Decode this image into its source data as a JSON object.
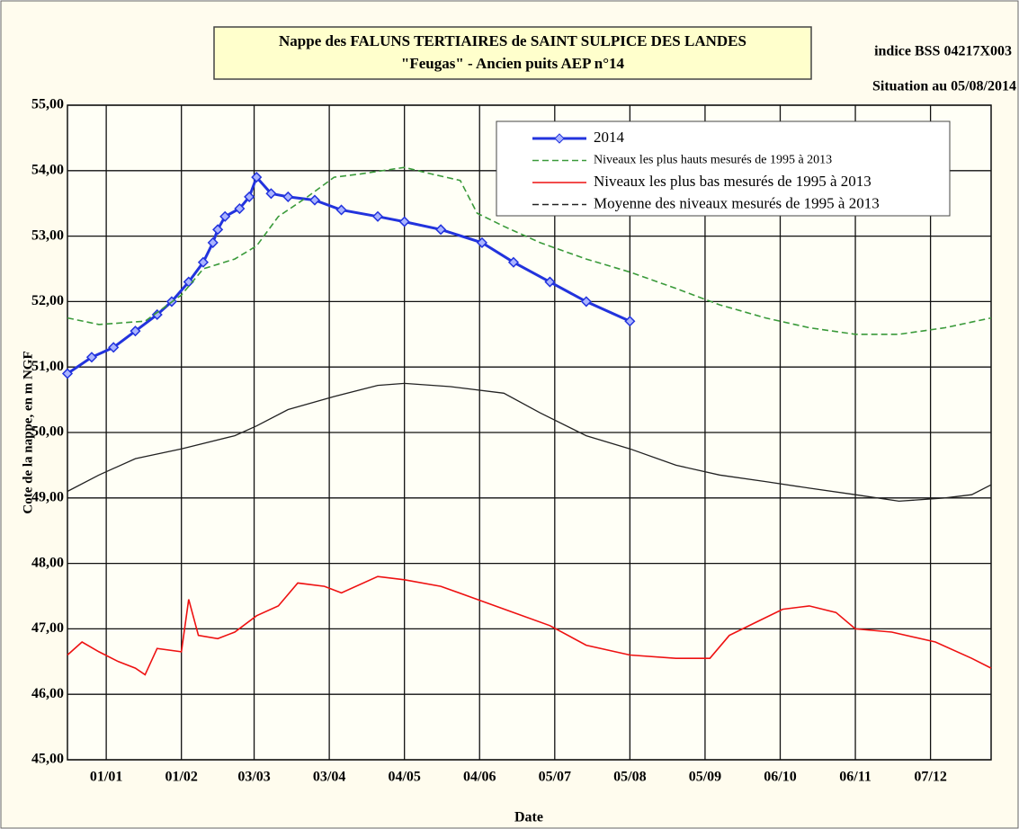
{
  "chart_data": {
    "type": "line",
    "title": "Nappe des FALUNS TERTIAIRES de SAINT SULPICE DES LANDES",
    "subtitle": "\"Feugas\" - Ancien puits AEP n°14",
    "annotations": [
      "indice BSS 04217X003",
      "Situation au 05/08/2014"
    ],
    "y_label": "Cote de la nappe, en m NGF",
    "x_label": "Date",
    "xlim": [
      -16,
      365
    ],
    "xticks": [
      {
        "value": 0,
        "label": "01/01"
      },
      {
        "value": 31,
        "label": "01/02"
      },
      {
        "value": 61,
        "label": "03/03"
      },
      {
        "value": 92,
        "label": "03/04"
      },
      {
        "value": 123,
        "label": "04/05"
      },
      {
        "value": 154,
        "label": "04/06"
      },
      {
        "value": 185,
        "label": "05/07"
      },
      {
        "value": 216,
        "label": "05/08"
      },
      {
        "value": 247,
        "label": "05/09"
      },
      {
        "value": 278,
        "label": "06/10"
      },
      {
        "value": 309,
        "label": "06/11"
      },
      {
        "value": 340,
        "label": "07/12"
      }
    ],
    "ylim": [
      45,
      55
    ],
    "yticks": [
      {
        "value": 45,
        "label": "45,00"
      },
      {
        "value": 46,
        "label": "46,00"
      },
      {
        "value": 47,
        "label": "47,00"
      },
      {
        "value": 48,
        "label": "48,00"
      },
      {
        "value": 49,
        "label": "49,00"
      },
      {
        "value": 50,
        "label": "50,00"
      },
      {
        "value": 51,
        "label": "51,00"
      },
      {
        "value": 52,
        "label": "52,00"
      },
      {
        "value": 53,
        "label": "53,00"
      },
      {
        "value": 54,
        "label": "54,00"
      },
      {
        "value": 55,
        "label": "55,00"
      }
    ],
    "grid": true,
    "legend": "top-right",
    "series": [
      {
        "name": "2014",
        "color": "#2233dd",
        "markers": true,
        "dashed": false,
        "x": [
          -16,
          -6,
          3,
          12,
          21,
          27,
          34,
          40,
          44,
          46,
          49,
          55,
          59,
          62,
          68,
          75,
          86,
          97,
          112,
          123,
          138,
          155,
          168,
          183,
          198,
          216
        ],
        "values": [
          50.9,
          51.15,
          51.3,
          51.55,
          51.8,
          52.0,
          52.3,
          52.6,
          52.9,
          53.1,
          53.3,
          53.42,
          53.6,
          53.9,
          53.65,
          53.6,
          53.55,
          53.4,
          53.3,
          53.22,
          53.1,
          52.9,
          52.6,
          52.3,
          52.0,
          51.7
        ]
      },
      {
        "name": "Niveaux les plus hauts mesurés de 1995 à 2013",
        "color": "#3a9a3a",
        "markers": false,
        "dashed": true,
        "x": [
          -16,
          -3,
          16,
          31,
          40,
          53,
          62,
          71,
          83,
          94,
          105,
          123,
          134,
          146,
          153,
          164,
          179,
          198,
          216,
          235,
          253,
          272,
          290,
          309,
          327,
          346,
          365
        ],
        "values": [
          51.75,
          51.65,
          51.7,
          52.1,
          52.5,
          52.65,
          52.85,
          53.3,
          53.6,
          53.9,
          53.95,
          54.05,
          53.95,
          53.85,
          53.35,
          53.15,
          52.9,
          52.65,
          52.45,
          52.2,
          51.95,
          51.75,
          51.6,
          51.5,
          51.5,
          51.6,
          51.75
        ]
      },
      {
        "name": "Niveaux les plus bas mesurés de 1995 à 2013",
        "color": "#ee1111",
        "markers": false,
        "dashed": false,
        "x": [
          -16,
          -10,
          -3,
          5,
          12,
          16,
          21,
          31,
          34,
          38,
          46,
          53,
          62,
          71,
          79,
          90,
          97,
          112,
          123,
          138,
          153,
          168,
          183,
          198,
          216,
          235,
          249,
          257,
          268,
          279,
          290,
          301,
          309,
          324,
          342,
          357,
          365
        ],
        "values": [
          46.6,
          46.8,
          46.65,
          46.5,
          46.4,
          46.3,
          46.7,
          46.65,
          47.45,
          46.9,
          46.85,
          46.95,
          47.2,
          47.35,
          47.7,
          47.65,
          47.55,
          47.8,
          47.75,
          47.65,
          47.45,
          47.25,
          47.05,
          46.75,
          46.6,
          46.55,
          46.55,
          46.9,
          47.1,
          47.3,
          47.35,
          47.25,
          47.0,
          46.95,
          46.8,
          46.55,
          46.4
        ]
      },
      {
        "name": "Moyenne des niveaux mesurés de 1995 à 2013",
        "color": "#222222",
        "markers": false,
        "dashed": true,
        "x": [
          -16,
          -3,
          12,
          31,
          53,
          62,
          75,
          94,
          112,
          123,
          142,
          164,
          179,
          198,
          216,
          235,
          253,
          272,
          290,
          309,
          327,
          346,
          357,
          365
        ],
        "values": [
          49.1,
          49.35,
          49.6,
          49.75,
          49.95,
          50.1,
          50.35,
          50.55,
          50.72,
          50.75,
          50.7,
          50.6,
          50.3,
          49.95,
          49.75,
          49.5,
          49.35,
          49.25,
          49.15,
          49.05,
          48.95,
          49.0,
          49.05,
          49.2
        ]
      }
    ]
  }
}
